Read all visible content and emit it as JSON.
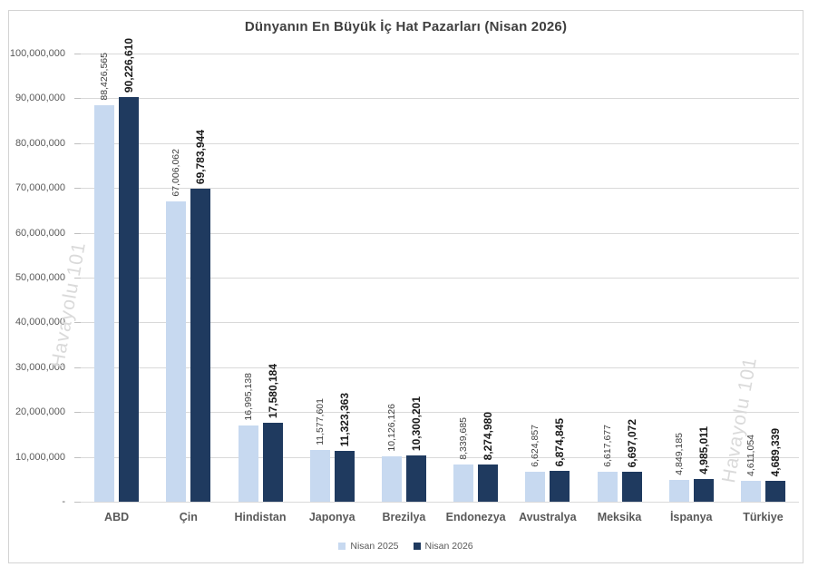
{
  "watermark": {
    "text": "Havayolu 101"
  },
  "chart_data": {
    "type": "bar",
    "title": "Dünyanın En Büyük İç Hat Pazarları (Nisan 2026)",
    "categories": [
      "ABD",
      "Çin",
      "Hindistan",
      "Japonya",
      "Brezilya",
      "Endonezya",
      "Avustralya",
      "Meksika",
      "İspanya",
      "Türkiye"
    ],
    "series": [
      {
        "name": "Nisan 2025",
        "color": "#C7D9F0",
        "values": [
          88426565,
          67006062,
          16995138,
          11577601,
          10126126,
          8339685,
          6624857,
          6617677,
          4849185,
          4611054
        ],
        "labels": [
          "88,426,565",
          "67,006,062",
          "16,995,138",
          "11,577,601",
          "10,126,126",
          "8,339,685",
          "6,624,857",
          "6,617,677",
          "4,849,185",
          "4,611,054"
        ]
      },
      {
        "name": "Nisan 2026",
        "color": "#1F3A5F",
        "values": [
          90226610,
          69783944,
          17580184,
          11323363,
          10300201,
          8274980,
          6874845,
          6697072,
          4985011,
          4689339
        ],
        "labels": [
          "90,226,610",
          "69,783,944",
          "17,580,184",
          "11,323,363",
          "10,300,201",
          "8,274,980",
          "6,874,845",
          "6,697,072",
          "4,985,011",
          "4,689,339"
        ]
      }
    ],
    "ylim": [
      0,
      100000000
    ],
    "ytick_step": 10000000,
    "ytick_labels": [
      "100,000,000",
      "90,000,000",
      "80,000,000",
      "70,000,000",
      "60,000,000",
      "50,000,000",
      "40,000,000",
      "30,000,000",
      "20,000,000",
      "10,000,000",
      "-"
    ],
    "grid": true,
    "legend_position": "bottom",
    "gridline_color": "#D9D9D9",
    "title_color": "#404040",
    "axis_label_color": "#595959"
  }
}
